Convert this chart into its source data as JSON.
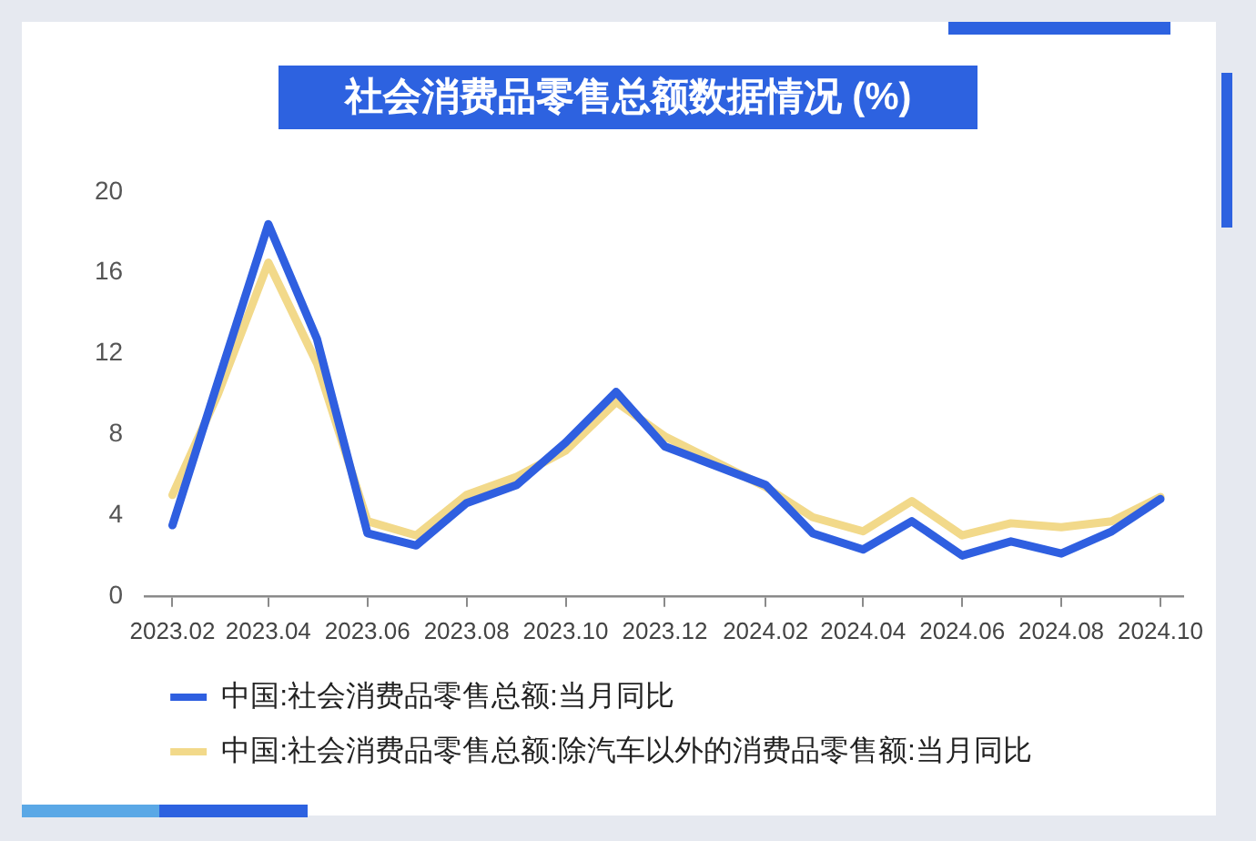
{
  "chart_data": {
    "type": "line",
    "title": "社会消费品零售总额数据情况 (%)",
    "x": [
      "2023-02",
      "2023-03",
      "2023-04",
      "2023-05",
      "2023-06",
      "2023-07",
      "2023-08",
      "2023-09",
      "2023-10",
      "2023-11",
      "2023-12",
      "2024-02",
      "2024-03",
      "2024-04",
      "2024-05",
      "2024-06",
      "2024-07",
      "2024-08",
      "2024-09",
      "2024-10"
    ],
    "series": [
      {
        "name": "中国:社会消费品零售总额:当月同比",
        "color": "#2f5fe0",
        "values": [
          3.5,
          10.6,
          18.4,
          12.7,
          3.1,
          2.5,
          4.6,
          5.5,
          7.6,
          10.1,
          7.4,
          5.5,
          3.1,
          2.3,
          3.7,
          2.0,
          2.7,
          2.1,
          3.2,
          4.8
        ]
      },
      {
        "name": "中国:社会消费品零售总额:除汽车以外的消费品零售额:当月同比",
        "color": "#f2d98a",
        "values": [
          5.0,
          10.0,
          16.5,
          11.5,
          3.7,
          3.0,
          5.0,
          5.9,
          7.2,
          9.6,
          7.9,
          5.4,
          3.9,
          3.2,
          4.7,
          3.0,
          3.6,
          3.4,
          3.7,
          4.9
        ]
      }
    ],
    "xlim": [
      "2023-01-15",
      "2024-10-15"
    ],
    "xticks": [
      {
        "value": "2023-02",
        "label": "2023.02"
      },
      {
        "value": "2023-04",
        "label": "2023.04"
      },
      {
        "value": "2023-06",
        "label": "2023.06"
      },
      {
        "value": "2023-08",
        "label": "2023.08"
      },
      {
        "value": "2023-10",
        "label": "2023.10"
      },
      {
        "value": "2023-12",
        "label": "2023.12"
      },
      {
        "value": "2024-02",
        "label": "2024.02"
      },
      {
        "value": "2024-04",
        "label": "2024.04"
      },
      {
        "value": "2024-06",
        "label": "2024.06"
      },
      {
        "value": "2024-08",
        "label": "2024.08"
      },
      {
        "value": "2024-10",
        "label": "2024.10"
      }
    ],
    "ylim": [
      0,
      20
    ],
    "yticks": [
      0,
      4,
      8,
      12,
      16,
      20
    ],
    "legend": "bottom left",
    "grid": false,
    "marker": "none",
    "line_style": "solid"
  }
}
